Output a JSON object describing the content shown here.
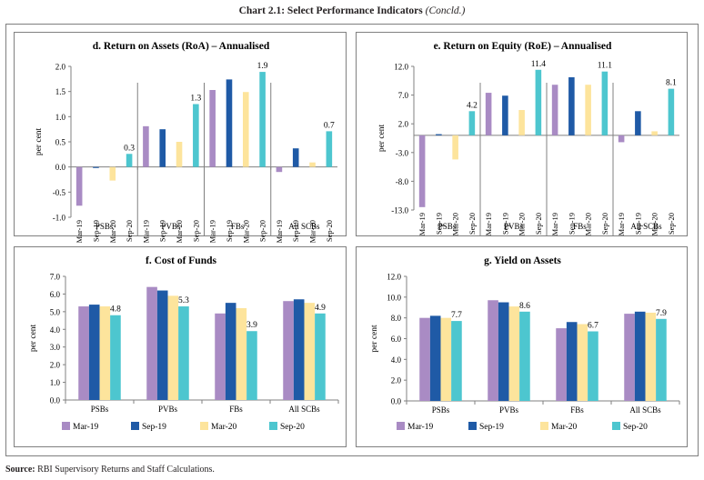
{
  "page": {
    "title": "Chart 2.1: Select Performance Indicators",
    "title_suffix": "(Concld.)",
    "source_label": "Source:",
    "source_text": "RBI Supervisory Returns and Staff Calculations."
  },
  "colors": {
    "Mar-19": "#a98bc4",
    "Sep-19": "#1f5aa6",
    "Mar-20": "#fde49c",
    "Sep-20": "#4dc6cf"
  },
  "chart_data": [
    {
      "id": "d",
      "type": "bar",
      "title": "d. Return on Assets (RoA) – Annualised",
      "ylabel": "per cent",
      "ylim": [
        -1.0,
        2.0
      ],
      "yticks": [
        "2.0",
        "1.5",
        "1.0",
        "0.5",
        "0.0",
        "-0.5",
        "-1.0"
      ],
      "ytick_values": [
        2.0,
        1.5,
        1.0,
        0.5,
        0.0,
        -0.5,
        -1.0
      ],
      "x_labels_rotated": true,
      "categories": [
        "PSBs",
        "PVBs",
        "FBs",
        "All SCBs"
      ],
      "period_labels": [
        "Mar-19",
        "Sep-19",
        "Mar-20",
        "Sep-20"
      ],
      "series": [
        {
          "name": "Mar-19",
          "values": [
            -0.77,
            0.81,
            1.53,
            -0.1
          ]
        },
        {
          "name": "Sep-19",
          "values": [
            -0.02,
            0.75,
            1.74,
            0.37
          ]
        },
        {
          "name": "Mar-20",
          "values": [
            -0.27,
            0.5,
            1.49,
            0.09
          ]
        },
        {
          "name": "Sep-20",
          "values": [
            0.26,
            1.25,
            1.89,
            0.71
          ]
        }
      ],
      "data_labels": [
        "0.3",
        "1.3",
        "1.9",
        "0.7"
      ]
    },
    {
      "id": "e",
      "type": "bar",
      "title": "e. Return on Equity (RoE) – Annualised",
      "ylabel": "per cent",
      "ylim": [
        -13.0,
        12.0
      ],
      "yticks": [
        "12.0",
        "7.0",
        "2.0",
        "-3.0",
        "-8.0",
        "-13.0"
      ],
      "ytick_values": [
        12.0,
        7.0,
        2.0,
        -3.0,
        -8.0,
        -13.0
      ],
      "x_labels_rotated": true,
      "categories": [
        "PSBs",
        "PVBs",
        "FBs",
        "All SCBs"
      ],
      "period_labels": [
        "Mar-19",
        "Sep-19",
        "Mar-20",
        "Sep-20"
      ],
      "series": [
        {
          "name": "Mar-19",
          "values": [
            -12.5,
            7.4,
            8.8,
            -1.2
          ]
        },
        {
          "name": "Sep-19",
          "values": [
            0.2,
            6.9,
            10.1,
            4.2
          ]
        },
        {
          "name": "Mar-20",
          "values": [
            -4.2,
            4.4,
            8.8,
            0.7
          ]
        },
        {
          "name": "Sep-20",
          "values": [
            4.2,
            11.4,
            11.1,
            8.1
          ]
        }
      ],
      "data_labels": [
        "4.2",
        "11.4",
        "11.1",
        "8.1"
      ]
    },
    {
      "id": "f",
      "type": "bar",
      "title": "f. Cost of Funds",
      "ylabel": "per cent",
      "ylim": [
        0.0,
        7.0
      ],
      "yticks": [
        "7.0",
        "6.0",
        "5.0",
        "4.0",
        "3.0",
        "2.0",
        "1.0",
        "0.0"
      ],
      "ytick_values": [
        7.0,
        6.0,
        5.0,
        4.0,
        3.0,
        2.0,
        1.0,
        0.0
      ],
      "x_labels_rotated": false,
      "categories": [
        "PSBs",
        "PVBs",
        "FBs",
        "All SCBs"
      ],
      "legend": [
        "Mar-19",
        "Sep-19",
        "Mar-20",
        "Sep-20"
      ],
      "series": [
        {
          "name": "Mar-19",
          "values": [
            5.3,
            6.4,
            4.9,
            5.6
          ]
        },
        {
          "name": "Sep-19",
          "values": [
            5.4,
            6.2,
            5.5,
            5.7
          ]
        },
        {
          "name": "Mar-20",
          "values": [
            5.3,
            5.9,
            5.2,
            5.5
          ]
        },
        {
          "name": "Sep-20",
          "values": [
            4.8,
            5.3,
            3.9,
            4.9
          ]
        }
      ],
      "data_labels": [
        "4.8",
        "5.3",
        "3.9",
        "4.9"
      ]
    },
    {
      "id": "g",
      "type": "bar",
      "title": "g. Yield on Assets",
      "ylabel": "per cent",
      "ylim": [
        0.0,
        12.0
      ],
      "yticks": [
        "12.0",
        "10.0",
        "8.0",
        "6.0",
        "4.0",
        "2.0",
        "0.0"
      ],
      "ytick_values": [
        12.0,
        10.0,
        8.0,
        6.0,
        4.0,
        2.0,
        0.0
      ],
      "x_labels_rotated": false,
      "categories": [
        "PSBs",
        "PVBs",
        "FBs",
        "All SCBs"
      ],
      "legend": [
        "Mar-19",
        "Sep-19",
        "Mar-20",
        "Sep-20"
      ],
      "series": [
        {
          "name": "Mar-19",
          "values": [
            8.0,
            9.7,
            7.0,
            8.4
          ]
        },
        {
          "name": "Sep-19",
          "values": [
            8.2,
            9.5,
            7.6,
            8.6
          ]
        },
        {
          "name": "Mar-20",
          "values": [
            8.0,
            9.1,
            7.4,
            8.5
          ]
        },
        {
          "name": "Sep-20",
          "values": [
            7.7,
            8.6,
            6.7,
            7.9
          ]
        }
      ],
      "data_labels": [
        "7.7",
        "8.6",
        "6.7",
        "7.9"
      ]
    }
  ]
}
